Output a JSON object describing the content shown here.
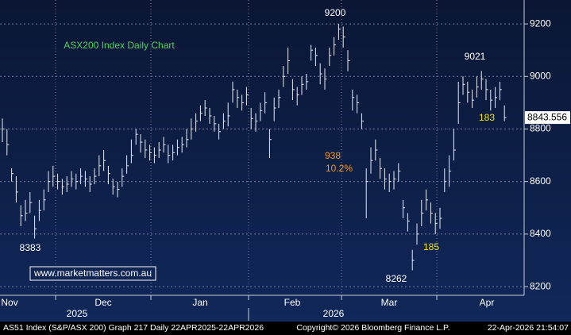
{
  "chart_data": {
    "type": "ohlc",
    "title": "ASX200 Index Daily Chart",
    "series": [
      {
        "color": "#e8ecf4",
        "close": [
          8800,
          8740,
          8630,
          8560,
          8470,
          8480,
          8520,
          8420,
          8490,
          8530,
          8600,
          8620,
          8600,
          8580,
          8590,
          8610,
          8600,
          8620,
          8610,
          8590,
          8620,
          8660,
          8680,
          8630,
          8580,
          8570,
          8620,
          8660,
          8700,
          8780,
          8750,
          8720,
          8710,
          8700,
          8720,
          8740,
          8700,
          8710,
          8730,
          8740,
          8760,
          8800,
          8830,
          8860,
          8880,
          8850,
          8820,
          8790,
          8830,
          8850,
          8950,
          8920,
          8900,
          8930,
          8840,
          8830,
          8870,
          8900,
          8760,
          8880,
          8920,
          9000,
          9060,
          8950,
          8930,
          8970,
          8980,
          9100,
          9080,
          9010,
          8990,
          9080,
          9120,
          9180,
          9150,
          9060,
          8920,
          8900,
          8830,
          8600,
          8680,
          8720,
          8650,
          8610,
          8600,
          8610,
          8640,
          8500,
          8450,
          8300,
          8400,
          8480,
          8530,
          8480,
          8440,
          8460,
          8600,
          8640,
          8720,
          8900,
          8970,
          8940,
          8910,
          8960,
          8990,
          8950,
          8910,
          8920,
          8950,
          8843.556
        ],
        "high": [
          8840,
          8800,
          8650,
          8620,
          8510,
          8530,
          8560,
          8470,
          8530,
          8570,
          8640,
          8660,
          8630,
          8610,
          8620,
          8640,
          8630,
          8650,
          8640,
          8620,
          8650,
          8700,
          8720,
          8660,
          8610,
          8600,
          8650,
          8700,
          8760,
          8800,
          8780,
          8760,
          8740,
          8730,
          8750,
          8770,
          8740,
          8740,
          8760,
          8770,
          8800,
          8840,
          8860,
          8890,
          8910,
          8880,
          8850,
          8820,
          8860,
          8900,
          8980,
          8950,
          8930,
          8960,
          8880,
          8860,
          8900,
          8940,
          8800,
          8920,
          8950,
          9040,
          9110,
          8990,
          8960,
          9000,
          9010,
          9120,
          9110,
          9050,
          9030,
          9110,
          9150,
          9200,
          9190,
          9100,
          8950,
          8930,
          8860,
          8650,
          8730,
          8760,
          8690,
          8650,
          8630,
          8640,
          8670,
          8530,
          8480,
          8340,
          8440,
          8530,
          8570,
          8520,
          8480,
          8500,
          8650,
          8700,
          8800,
          8980,
          9000,
          8980,
          8950,
          9000,
          9021,
          8990,
          8950,
          8960,
          8980,
          8890
        ],
        "low": [
          8750,
          8700,
          8600,
          8520,
          8430,
          8450,
          8480,
          8383,
          8450,
          8490,
          8560,
          8580,
          8570,
          8550,
          8560,
          8580,
          8570,
          8590,
          8580,
          8560,
          8590,
          8620,
          8640,
          8590,
          8550,
          8540,
          8580,
          8630,
          8670,
          8740,
          8710,
          8690,
          8680,
          8670,
          8690,
          8710,
          8670,
          8680,
          8700,
          8710,
          8730,
          8760,
          8790,
          8830,
          8850,
          8820,
          8790,
          8760,
          8800,
          8810,
          8900,
          8880,
          8870,
          8890,
          8800,
          8790,
          8830,
          8860,
          8690,
          8830,
          8880,
          8960,
          9010,
          8910,
          8890,
          8930,
          8950,
          9060,
          9040,
          8970,
          8950,
          9040,
          9080,
          9140,
          9110,
          9020,
          8870,
          8860,
          8800,
          8460,
          8630,
          8680,
          8610,
          8570,
          8560,
          8570,
          8600,
          8460,
          8410,
          8262,
          8360,
          8430,
          8490,
          8440,
          8400,
          8420,
          8560,
          8580,
          8680,
          8820,
          8930,
          8900,
          8880,
          8920,
          8950,
          8910,
          8870,
          8880,
          8910,
          8830
        ]
      }
    ],
    "ylim": [
      8167,
      9291
    ],
    "yticks": [
      8200,
      8400,
      8600,
      8800,
      9000,
      9200
    ],
    "grid": true,
    "months": [
      "Nov",
      "Dec",
      "Jan",
      "Feb",
      "Mar",
      "Apr"
    ],
    "years": [
      "2025",
      "2026"
    ],
    "annotations": [
      {
        "text": "9200",
        "color": "#ffffff"
      },
      {
        "text": "9021",
        "color": "#ffffff"
      },
      {
        "text": "8383",
        "color": "#ffffff"
      },
      {
        "text": "8262",
        "color": "#ffffff"
      },
      {
        "text": "185",
        "color": "#f5e400"
      },
      {
        "text": "183",
        "color": "#f5e400"
      },
      {
        "text": "938",
        "color": "#f39a1e"
      },
      {
        "text": "10.2%",
        "color": "#f39a1e"
      }
    ],
    "website": "www.marketmatters.com.au",
    "footer": [
      "AS51 Index (S&P/ASX 200) Graph 217 Daily 22APR2025-22APR2026",
      "Copyright© 2026 Bloomberg Finance L.P.",
      "22-Apr-2026 21:54:07"
    ]
  }
}
